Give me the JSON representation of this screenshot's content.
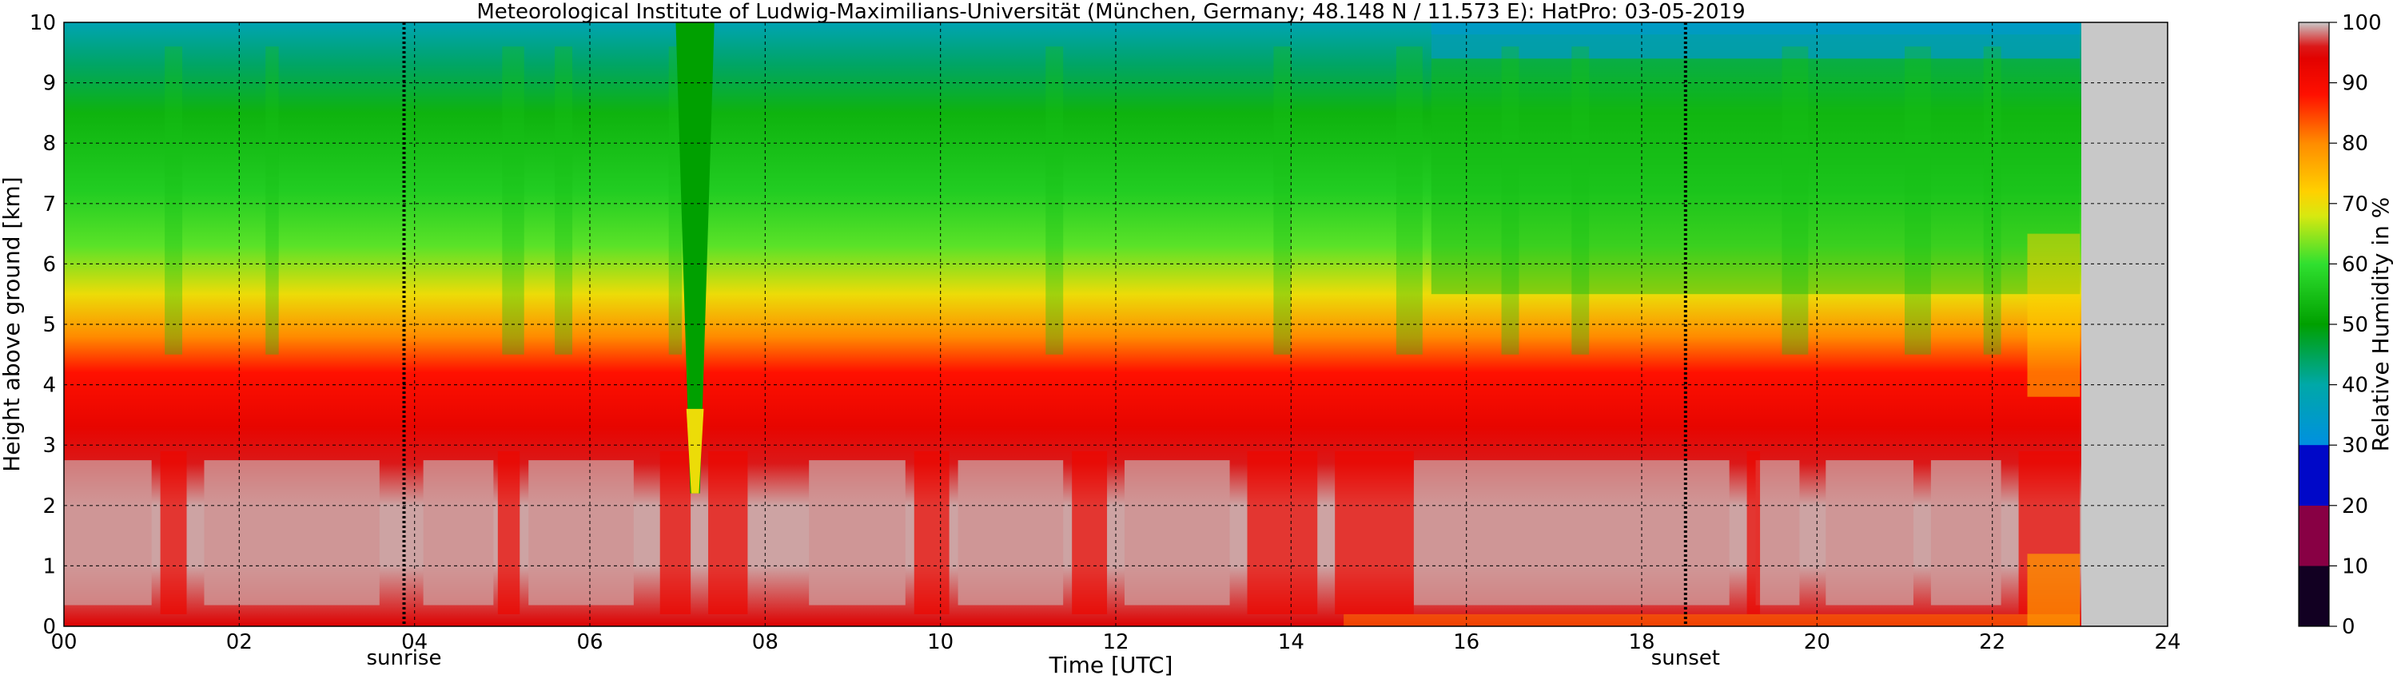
{
  "chart_data": {
    "type": "heatmap",
    "title": "Meteorological Institute of Ludwig-Maximilians-Universität (München, Germany; 48.148 N / 11.573 E):    HatPro: 03-05-2019",
    "xlabel": "Time [UTC]",
    "ylabel": "Height above ground [km]",
    "xlim": [
      0,
      24
    ],
    "ylim": [
      0,
      10
    ],
    "x_ticks": [
      "00",
      "02",
      "04",
      "06",
      "08",
      "10",
      "12",
      "14",
      "16",
      "18",
      "20",
      "22",
      "24"
    ],
    "y_ticks": [
      "0",
      "1",
      "2",
      "3",
      "4",
      "5",
      "6",
      "7",
      "8",
      "9",
      "10"
    ],
    "grid": true,
    "data_end_time": 23.0,
    "markers": [
      {
        "label": "sunrise",
        "time": 3.88
      },
      {
        "label": "sunset",
        "time": 18.5
      }
    ],
    "colorbar": {
      "label": "Relative Humidity in %",
      "ticks": [
        "0",
        "10",
        "20",
        "30",
        "40",
        "50",
        "60",
        "70",
        "80",
        "90",
        "100"
      ],
      "range": [
        0,
        100
      ]
    },
    "profile": {
      "heights_km": [
        0,
        1,
        2,
        2.7,
        3.3,
        4.2,
        4.8,
        5.5,
        6.3,
        7.2,
        8.5,
        9.3,
        10
      ],
      "humidity_pct": [
        95,
        99,
        99,
        96,
        93,
        88,
        80,
        70,
        62,
        57,
        53,
        44,
        38
      ]
    },
    "events": [
      {
        "time": 7.2,
        "note": "narrow dry intrusion down to ~2.2 km"
      }
    ]
  }
}
